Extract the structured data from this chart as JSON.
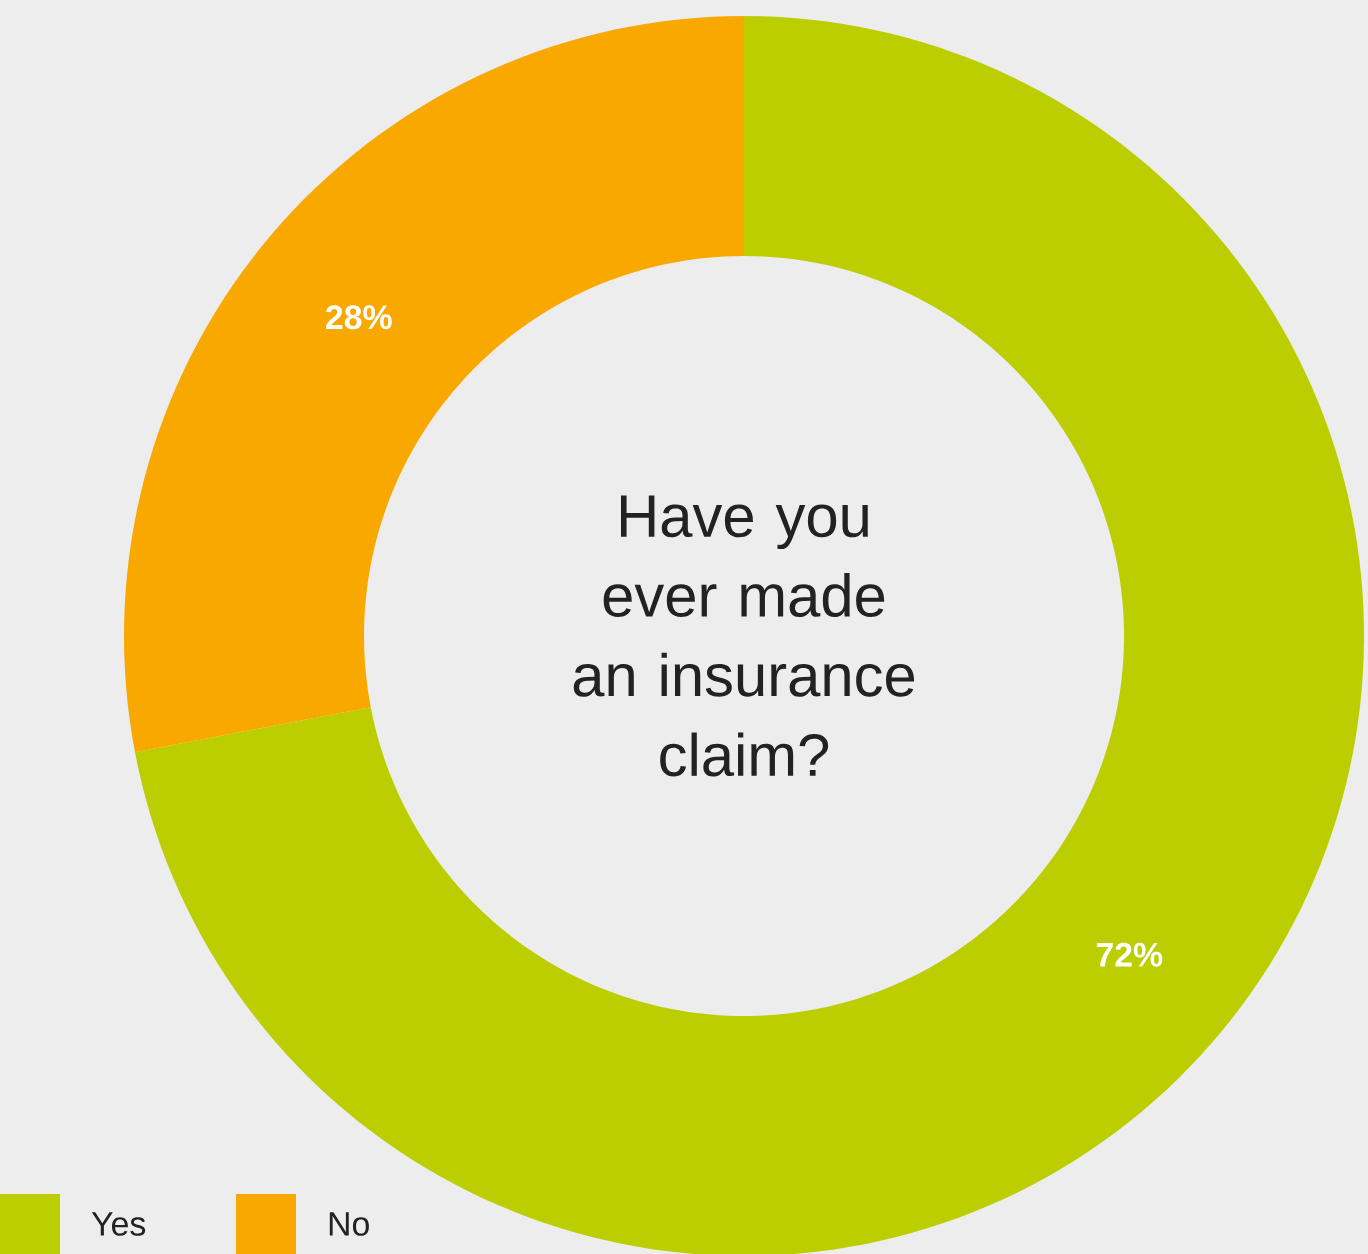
{
  "chart_data": {
    "type": "donut",
    "title": "Have you ever made an insurance claim?",
    "categories": [
      "Yes",
      "No"
    ],
    "values": [
      72,
      28
    ],
    "value_labels": [
      "72%",
      "28%"
    ],
    "colors": [
      "#bccd00",
      "#f9a800"
    ],
    "legend": "bottom left"
  }
}
